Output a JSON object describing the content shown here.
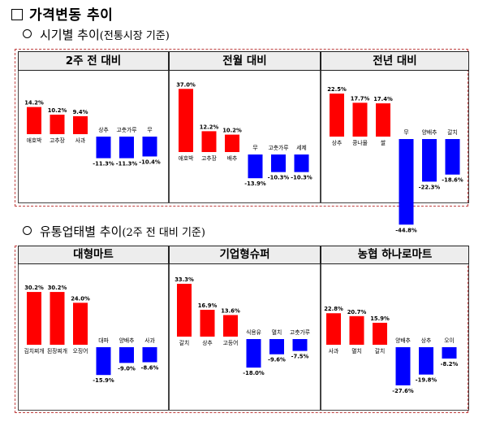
{
  "title": "가격변동 추이",
  "sections": [
    {
      "heading": "시기별 추이",
      "paren": "(전통시장 기준)",
      "panels": [
        {
          "header": "2주 전 대비",
          "chart_data": {
            "type": "bar",
            "categories": [
              "애호박",
              "고추장",
              "사과",
              "상추",
              "고춧가루",
              "무"
            ],
            "values": [
              14.2,
              10.2,
              9.4,
              -11.3,
              -11.3,
              -10.4
            ],
            "labels": [
              "14.2%",
              "10.2%",
              "9.4%",
              "-11.3%",
              "-11.3%",
              "-10.4%"
            ]
          }
        },
        {
          "header": "전월 대비",
          "chart_data": {
            "type": "bar",
            "categories": [
              "애호박",
              "고추장",
              "배추",
              "무",
              "고춧가루",
              "세제"
            ],
            "values": [
              37.0,
              12.2,
              10.2,
              -13.9,
              -10.3,
              -10.3
            ],
            "labels": [
              "37.0%",
              "12.2%",
              "10.2%",
              "-13.9%",
              "-10.3%",
              "-10.3%"
            ]
          }
        },
        {
          "header": "전년 대비",
          "chart_data": {
            "type": "bar",
            "categories": [
              "상추",
              "콩나물",
              "쌀",
              "무",
              "양배추",
              "갈치"
            ],
            "values": [
              22.5,
              17.7,
              17.4,
              -44.8,
              -22.3,
              -18.6
            ],
            "labels": [
              "22.5%",
              "17.7%",
              "17.4%",
              "-44.8%",
              "-22.3%",
              "-18.6%"
            ]
          }
        }
      ]
    },
    {
      "heading": "유통업태별 추이",
      "paren": "(2주 전 대비 기준)",
      "panels": [
        {
          "header": "대형마트",
          "chart_data": {
            "type": "bar",
            "categories": [
              "김치찌개",
              "된장찌개",
              "오징어",
              "대파",
              "양배추",
              "사과"
            ],
            "values": [
              30.2,
              30.2,
              24.0,
              -15.9,
              -9.0,
              -8.6
            ],
            "labels": [
              "30.2%",
              "30.2%",
              "24.0%",
              "-15.9%",
              "-9.0%",
              "-8.6%"
            ]
          }
        },
        {
          "header": "기업형슈퍼",
          "chart_data": {
            "type": "bar",
            "categories": [
              "갈치",
              "상추",
              "고등어",
              "식용유",
              "멸치",
              "고춧가루"
            ],
            "values": [
              33.3,
              16.9,
              13.6,
              -18.0,
              -9.6,
              -7.5
            ],
            "labels": [
              "33.3%",
              "16.9%",
              "13.6%",
              "-18.0%",
              "-9.6%",
              "-7.5%"
            ]
          }
        },
        {
          "header": "농협 하나로마트",
          "chart_data": {
            "type": "bar",
            "categories": [
              "사과",
              "멸치",
              "갈치",
              "양배추",
              "상추",
              "오이"
            ],
            "values": [
              22.8,
              20.7,
              15.9,
              -27.6,
              -19.8,
              -8.2
            ],
            "labels": [
              "22.8%",
              "20.7%",
              "15.9%",
              "-27.6%",
              "-19.8%",
              "-8.2%"
            ]
          }
        }
      ]
    }
  ],
  "colors": {
    "positive": "#ff0000",
    "negative": "#0000ff"
  }
}
